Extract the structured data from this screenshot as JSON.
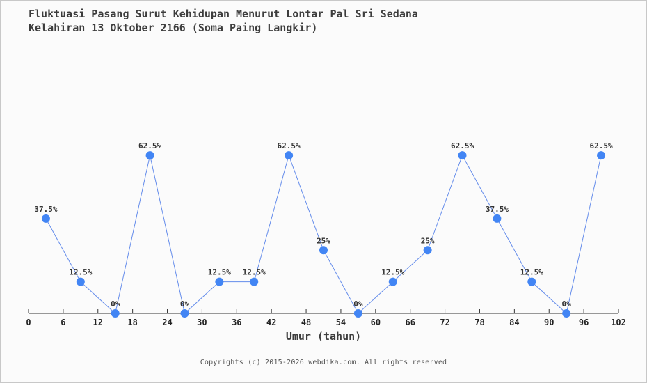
{
  "page": {
    "title_line1": "Fluktuasi Pasang Surut Kehidupan Menurut Lontar Pal Sri Sedana",
    "title_line2": "Kelahiran 13 Oktober 2166 (Soma Paing Langkir)",
    "footer": "Copyrights (c) 2015-2026 webdika.com. All rights reserved"
  },
  "chart_data": {
    "type": "line",
    "title": "Fluktuasi Pasang Surut Kehidupan Menurut Lontar Pal Sri Sedana Kelahiran 13 Oktober 2166 (Soma Paing Langkir)",
    "xlabel": "Umur (tahun)",
    "ylabel": "",
    "x": [
      3,
      9,
      15,
      21,
      27,
      33,
      39,
      45,
      51,
      57,
      63,
      69,
      75,
      81,
      87,
      93,
      99
    ],
    "values": [
      37.5,
      12.5,
      0,
      62.5,
      0,
      12.5,
      12.5,
      62.5,
      25,
      0,
      12.5,
      25,
      62.5,
      37.5,
      12.5,
      0,
      62.5
    ],
    "point_labels": [
      "37.5%",
      "12.5%",
      "0%",
      "62.5%",
      "0%",
      "12.5%",
      "12.5%",
      "62.5%",
      "25%",
      "0%",
      "12.5%",
      "25%",
      "62.5%",
      "37.5%",
      "12.5%",
      "0%",
      "62.5%"
    ],
    "x_ticks": [
      0,
      6,
      12,
      18,
      24,
      30,
      36,
      42,
      48,
      54,
      60,
      66,
      72,
      78,
      84,
      90,
      96,
      102
    ],
    "xlim": [
      0,
      102
    ],
    "ylim": [
      0,
      100
    ],
    "grid": false,
    "legend": false,
    "colors": {
      "marker": "#4285f4",
      "line": "#648ceb",
      "axis": "#333333",
      "label": "#333333"
    }
  }
}
